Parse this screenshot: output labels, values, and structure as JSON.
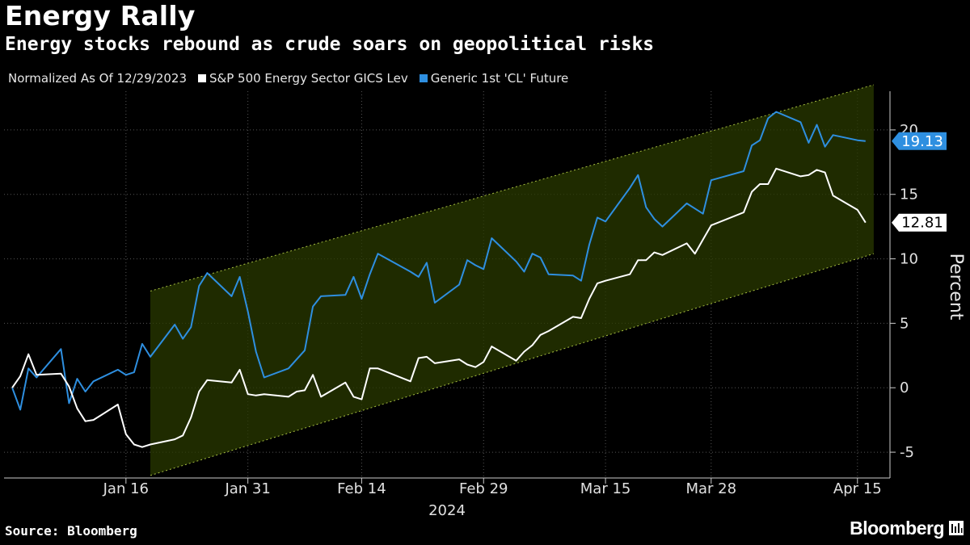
{
  "header": {
    "title": "Energy Rally",
    "subtitle": "Energy stocks rebound as crude soars on geopolitical risks"
  },
  "legend": {
    "note": "Normalized As Of 12/29/2023",
    "items": [
      {
        "label": "S&P 500 Energy Sector GICS Lev",
        "color": "#ffffff"
      },
      {
        "label": "Generic 1st 'CL' Future",
        "color": "#2e8fe0"
      }
    ]
  },
  "footer": {
    "source": "Source: Bloomberg",
    "brand": "Bloomberg"
  },
  "chart_data": {
    "type": "line",
    "title": "Energy Rally",
    "subtitle": "Energy stocks rebound as crude soars on geopolitical risks",
    "ylabel": "Percent",
    "xlabel": "2024",
    "ylim": [
      -7,
      23
    ],
    "yticks": [
      -5,
      0,
      5,
      10,
      15,
      20
    ],
    "y_axis_side": "right",
    "grid": true,
    "legend_position": "top-left",
    "x_ticks": [
      "Jan 16",
      "Jan 31",
      "Feb 14",
      "Feb 29",
      "Mar 15",
      "Mar 28",
      "Apr 15"
    ],
    "x_tick_dates": [
      "2024-01-16",
      "2024-01-31",
      "2024-02-14",
      "2024-02-29",
      "2024-03-15",
      "2024-03-28",
      "2024-04-15"
    ],
    "x_range": [
      "2024-01-01",
      "2024-04-19"
    ],
    "channel": {
      "color": "#2a3a00",
      "upper": [
        {
          "x": "2024-01-19",
          "y": 7.5
        },
        {
          "x": "2024-04-17",
          "y": 23.5
        }
      ],
      "lower": [
        {
          "x": "2024-01-19",
          "y": -6.8
        },
        {
          "x": "2024-04-17",
          "y": 10.4
        }
      ]
    },
    "series": [
      {
        "name": "S&P 500 Energy Sector GICS Lev",
        "color": "#ffffff",
        "last_value": "12.81",
        "points": [
          [
            "2024-01-02",
            0.0
          ],
          [
            "2024-01-03",
            0.9
          ],
          [
            "2024-01-04",
            2.6
          ],
          [
            "2024-01-05",
            1.0
          ],
          [
            "2024-01-08",
            1.1
          ],
          [
            "2024-01-09",
            0.1
          ],
          [
            "2024-01-10",
            -1.6
          ],
          [
            "2024-01-11",
            -2.6
          ],
          [
            "2024-01-12",
            -2.5
          ],
          [
            "2024-01-15",
            -1.3
          ],
          [
            "2024-01-16",
            -3.6
          ],
          [
            "2024-01-17",
            -4.4
          ],
          [
            "2024-01-18",
            -4.6
          ],
          [
            "2024-01-19",
            -4.4
          ],
          [
            "2024-01-22",
            -4.0
          ],
          [
            "2024-01-23",
            -3.7
          ],
          [
            "2024-01-24",
            -2.3
          ],
          [
            "2024-01-25",
            -0.3
          ],
          [
            "2024-01-26",
            0.6
          ],
          [
            "2024-01-29",
            0.4
          ],
          [
            "2024-01-30",
            1.4
          ],
          [
            "2024-01-31",
            -0.5
          ],
          [
            "2024-02-01",
            -0.6
          ],
          [
            "2024-02-02",
            -0.5
          ],
          [
            "2024-02-05",
            -0.7
          ],
          [
            "2024-02-06",
            -0.3
          ],
          [
            "2024-02-07",
            -0.2
          ],
          [
            "2024-02-08",
            1.0
          ],
          [
            "2024-02-09",
            -0.7
          ],
          [
            "2024-02-12",
            0.4
          ],
          [
            "2024-02-13",
            -0.7
          ],
          [
            "2024-02-14",
            -0.9
          ],
          [
            "2024-02-15",
            1.5
          ],
          [
            "2024-02-16",
            1.5
          ],
          [
            "2024-02-20",
            0.5
          ],
          [
            "2024-02-21",
            2.3
          ],
          [
            "2024-02-22",
            2.4
          ],
          [
            "2024-02-23",
            1.9
          ],
          [
            "2024-02-26",
            2.2
          ],
          [
            "2024-02-27",
            1.8
          ],
          [
            "2024-02-28",
            1.6
          ],
          [
            "2024-02-29",
            2.0
          ],
          [
            "2024-03-01",
            3.2
          ],
          [
            "2024-03-04",
            2.1
          ],
          [
            "2024-03-05",
            2.8
          ],
          [
            "2024-03-06",
            3.3
          ],
          [
            "2024-03-07",
            4.1
          ],
          [
            "2024-03-08",
            4.4
          ],
          [
            "2024-03-11",
            5.5
          ],
          [
            "2024-03-12",
            5.4
          ],
          [
            "2024-03-13",
            6.9
          ],
          [
            "2024-03-14",
            8.1
          ],
          [
            "2024-03-15",
            8.3
          ],
          [
            "2024-03-18",
            8.8
          ],
          [
            "2024-03-19",
            9.9
          ],
          [
            "2024-03-20",
            9.9
          ],
          [
            "2024-03-21",
            10.5
          ],
          [
            "2024-03-22",
            10.3
          ],
          [
            "2024-03-25",
            11.2
          ],
          [
            "2024-03-26",
            10.4
          ],
          [
            "2024-03-27",
            11.5
          ],
          [
            "2024-03-28",
            12.6
          ],
          [
            "2024-04-01",
            13.6
          ],
          [
            "2024-04-02",
            15.2
          ],
          [
            "2024-04-03",
            15.8
          ],
          [
            "2024-04-04",
            15.8
          ],
          [
            "2024-04-05",
            17.0
          ],
          [
            "2024-04-08",
            16.4
          ],
          [
            "2024-04-09",
            16.5
          ],
          [
            "2024-04-10",
            16.9
          ],
          [
            "2024-04-11",
            16.7
          ],
          [
            "2024-04-12",
            14.9
          ],
          [
            "2024-04-15",
            13.8
          ],
          [
            "2024-04-16",
            12.81
          ]
        ]
      },
      {
        "name": "Generic 1st 'CL' Future",
        "color": "#2e8fe0",
        "last_value": "19.13",
        "points": [
          [
            "2024-01-02",
            0.0
          ],
          [
            "2024-01-03",
            -1.7
          ],
          [
            "2024-01-04",
            1.5
          ],
          [
            "2024-01-05",
            0.8
          ],
          [
            "2024-01-08",
            3.0
          ],
          [
            "2024-01-09",
            -1.2
          ],
          [
            "2024-01-10",
            0.7
          ],
          [
            "2024-01-11",
            -0.3
          ],
          [
            "2024-01-12",
            0.5
          ],
          [
            "2024-01-15",
            1.4
          ],
          [
            "2024-01-16",
            1.0
          ],
          [
            "2024-01-17",
            1.2
          ],
          [
            "2024-01-18",
            3.4
          ],
          [
            "2024-01-19",
            2.4
          ],
          [
            "2024-01-22",
            4.9
          ],
          [
            "2024-01-23",
            3.8
          ],
          [
            "2024-01-24",
            4.7
          ],
          [
            "2024-01-25",
            7.9
          ],
          [
            "2024-01-26",
            8.9
          ],
          [
            "2024-01-29",
            7.1
          ],
          [
            "2024-01-30",
            8.6
          ],
          [
            "2024-01-31",
            5.9
          ],
          [
            "2024-02-01",
            2.8
          ],
          [
            "2024-02-02",
            0.8
          ],
          [
            "2024-02-05",
            1.5
          ],
          [
            "2024-02-06",
            2.2
          ],
          [
            "2024-02-07",
            2.9
          ],
          [
            "2024-02-08",
            6.3
          ],
          [
            "2024-02-09",
            7.1
          ],
          [
            "2024-02-12",
            7.2
          ],
          [
            "2024-02-13",
            8.6
          ],
          [
            "2024-02-14",
            6.9
          ],
          [
            "2024-02-15",
            8.8
          ],
          [
            "2024-02-16",
            10.4
          ],
          [
            "2024-02-20",
            9.0
          ],
          [
            "2024-02-21",
            8.6
          ],
          [
            "2024-02-22",
            9.7
          ],
          [
            "2024-02-23",
            6.6
          ],
          [
            "2024-02-26",
            8.0
          ],
          [
            "2024-02-27",
            9.9
          ],
          [
            "2024-02-28",
            9.5
          ],
          [
            "2024-02-29",
            9.2
          ],
          [
            "2024-03-01",
            11.6
          ],
          [
            "2024-03-04",
            9.8
          ],
          [
            "2024-03-05",
            9.0
          ],
          [
            "2024-03-06",
            10.4
          ],
          [
            "2024-03-07",
            10.1
          ],
          [
            "2024-03-08",
            8.8
          ],
          [
            "2024-03-11",
            8.7
          ],
          [
            "2024-03-12",
            8.3
          ],
          [
            "2024-03-13",
            11.1
          ],
          [
            "2024-03-14",
            13.2
          ],
          [
            "2024-03-15",
            12.9
          ],
          [
            "2024-03-18",
            15.5
          ],
          [
            "2024-03-19",
            16.5
          ],
          [
            "2024-03-20",
            14.0
          ],
          [
            "2024-03-21",
            13.1
          ],
          [
            "2024-03-22",
            12.5
          ],
          [
            "2024-03-25",
            14.3
          ],
          [
            "2024-03-26",
            13.9
          ],
          [
            "2024-03-27",
            13.5
          ],
          [
            "2024-03-28",
            16.1
          ],
          [
            "2024-04-01",
            16.8
          ],
          [
            "2024-04-02",
            18.8
          ],
          [
            "2024-04-03",
            19.2
          ],
          [
            "2024-04-04",
            20.9
          ],
          [
            "2024-04-05",
            21.4
          ],
          [
            "2024-04-08",
            20.6
          ],
          [
            "2024-04-09",
            19.0
          ],
          [
            "2024-04-10",
            20.4
          ],
          [
            "2024-04-11",
            18.7
          ],
          [
            "2024-04-12",
            19.6
          ],
          [
            "2024-04-15",
            19.2
          ],
          [
            "2024-04-16",
            19.13
          ]
        ]
      }
    ]
  }
}
